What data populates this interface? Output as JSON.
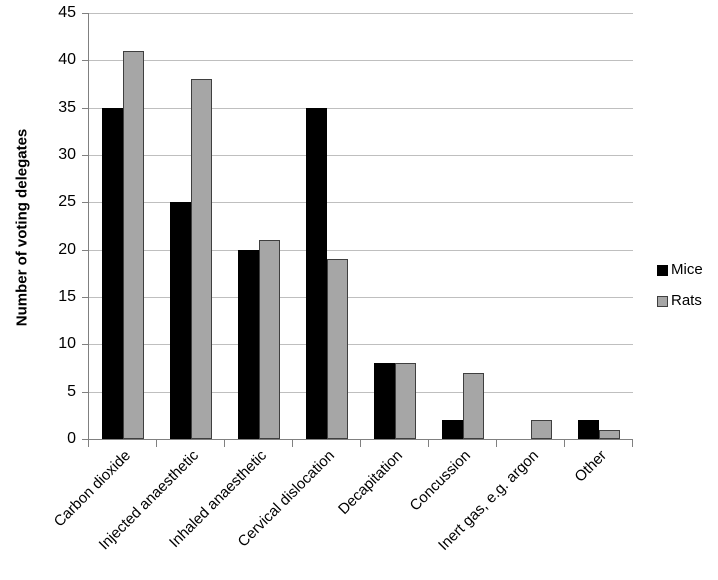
{
  "chart_data": {
    "type": "bar",
    "title": "",
    "xlabel": "",
    "ylabel": "Number of voting delegates",
    "categories": [
      "Carbon dioxide",
      "Injected anaesthetic",
      "Inhaled anaesthetic",
      "Cervical dislocation",
      "Decapitation",
      "Concussion",
      "Inert gas, e.g. argon",
      "Other"
    ],
    "series": [
      {
        "name": "Mice",
        "color": "#000000",
        "border": "#000000",
        "values": [
          35,
          25,
          20,
          35,
          8,
          2,
          0,
          2
        ]
      },
      {
        "name": "Rats",
        "color": "#a6a6a6",
        "border": "#3f3f3f",
        "values": [
          41,
          38,
          21,
          19,
          8,
          7,
          2,
          1
        ]
      }
    ],
    "ylim": [
      0,
      45
    ],
    "yticks": [
      0,
      5,
      10,
      15,
      20,
      25,
      30,
      35,
      40,
      45
    ],
    "grid": true,
    "legend_position": "right",
    "colors": {
      "gridline": "#bfbfbf",
      "axis": "#808080",
      "text": "#000000"
    }
  }
}
